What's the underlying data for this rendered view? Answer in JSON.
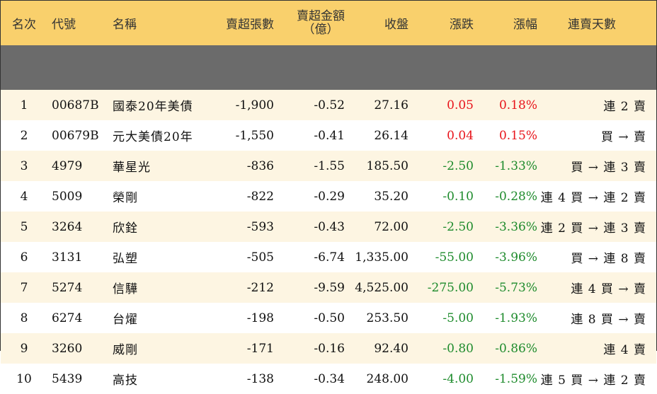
{
  "colors": {
    "header_bg": "#f9d06c",
    "row_alt_bg": "#fdf5e2",
    "up": "#e8141b",
    "down": "#1e8b2c"
  },
  "headers": {
    "rank": "名次",
    "code": "代號",
    "name": "名稱",
    "net_sell_volume": "賣超張數",
    "net_sell_amount_line1": "賣超金額",
    "net_sell_amount_line2": "（億）",
    "close": "收盤",
    "change": "漲跌",
    "change_pct": "漲幅",
    "streak": "連賣天數"
  },
  "rows": [
    {
      "rank": "1",
      "code": "00687B",
      "name": "國泰20年美債",
      "net_sell_volume": "-1,900",
      "net_sell_amount": "-0.52",
      "close": "27.16",
      "change": "0.05",
      "change_pct": "0.18%",
      "direction": "up",
      "streak": "連 2 賣"
    },
    {
      "rank": "2",
      "code": "00679B",
      "name": "元大美債20年",
      "net_sell_volume": "-1,550",
      "net_sell_amount": "-0.41",
      "close": "26.14",
      "change": "0.04",
      "change_pct": "0.15%",
      "direction": "up",
      "streak": "買 → 賣"
    },
    {
      "rank": "3",
      "code": "4979",
      "name": "華星光",
      "net_sell_volume": "-836",
      "net_sell_amount": "-1.55",
      "close": "185.50",
      "change": "-2.50",
      "change_pct": "-1.33%",
      "direction": "down",
      "streak": "買 → 連 3 賣"
    },
    {
      "rank": "4",
      "code": "5009",
      "name": "榮剛",
      "net_sell_volume": "-822",
      "net_sell_amount": "-0.29",
      "close": "35.20",
      "change": "-0.10",
      "change_pct": "-0.28%",
      "direction": "down",
      "streak": "連 4 買 → 連 2 賣"
    },
    {
      "rank": "5",
      "code": "3264",
      "name": "欣銓",
      "net_sell_volume": "-593",
      "net_sell_amount": "-0.43",
      "close": "72.00",
      "change": "-2.50",
      "change_pct": "-3.36%",
      "direction": "down",
      "streak": "連 2 買 → 連 3 賣"
    },
    {
      "rank": "6",
      "code": "3131",
      "name": "弘塑",
      "net_sell_volume": "-505",
      "net_sell_amount": "-6.74",
      "close": "1,335.00",
      "change": "-55.00",
      "change_pct": "-3.96%",
      "direction": "down",
      "streak": "買 → 連 8 賣"
    },
    {
      "rank": "7",
      "code": "5274",
      "name": "信驊",
      "net_sell_volume": "-212",
      "net_sell_amount": "-9.59",
      "close": "4,525.00",
      "change": "-275.00",
      "change_pct": "-5.73%",
      "direction": "down",
      "streak": "連 4 買 → 賣"
    },
    {
      "rank": "8",
      "code": "6274",
      "name": "台燿",
      "net_sell_volume": "-198",
      "net_sell_amount": "-0.50",
      "close": "253.50",
      "change": "-5.00",
      "change_pct": "-1.93%",
      "direction": "down",
      "streak": "連 8 買 → 賣"
    },
    {
      "rank": "9",
      "code": "3260",
      "name": "威剛",
      "net_sell_volume": "-171",
      "net_sell_amount": "-0.16",
      "close": "92.40",
      "change": "-0.80",
      "change_pct": "-0.86%",
      "direction": "down",
      "streak": "連 4 賣"
    },
    {
      "rank": "10",
      "code": "5439",
      "name": "高技",
      "net_sell_volume": "-138",
      "net_sell_amount": "-0.34",
      "close": "248.00",
      "change": "-4.00",
      "change_pct": "-1.59%",
      "direction": "down",
      "streak": "連 5 買 → 連 2 賣"
    }
  ]
}
